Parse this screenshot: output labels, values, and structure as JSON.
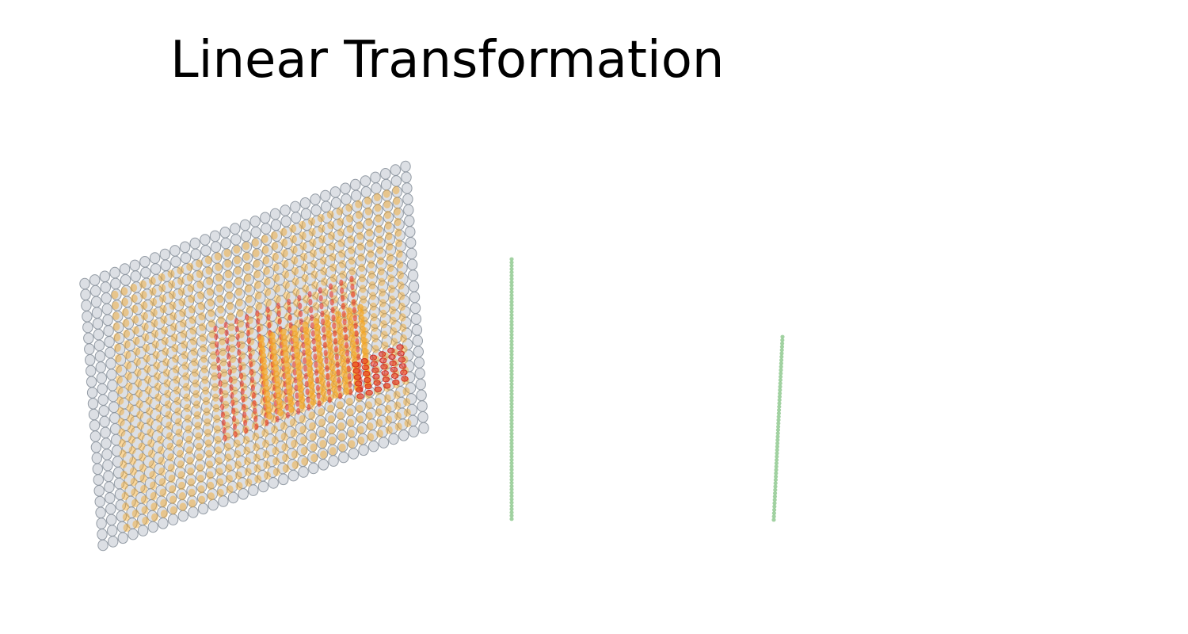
{
  "title": "Linear Transformation",
  "colors": {
    "background": "#ffffff",
    "input_grid": "#8a929c",
    "middle_layer": "#f5a623",
    "kernel_layer": "#e8281c",
    "output_line": "#7bbf7a"
  },
  "layers": [
    {
      "name": "input-grid",
      "rows": 25,
      "cols": 33,
      "color_key": "input_grid"
    },
    {
      "name": "middle-layer",
      "rows": 23,
      "cols": 31,
      "color_key": "middle_layer"
    },
    {
      "name": "kernel-layer",
      "rows": 15,
      "cols": 14,
      "color_key": "kernel_layer"
    },
    {
      "name": "highlight-block",
      "rows": 15,
      "cols": 10,
      "color_key": "middle_layer"
    },
    {
      "name": "output-block",
      "rows": 6,
      "cols": 6,
      "color_key": "kernel_layer"
    },
    {
      "name": "vertical-line-1",
      "count": 80,
      "color_key": "output_line"
    },
    {
      "name": "vertical-line-2",
      "count": 56,
      "color_key": "output_line"
    }
  ]
}
